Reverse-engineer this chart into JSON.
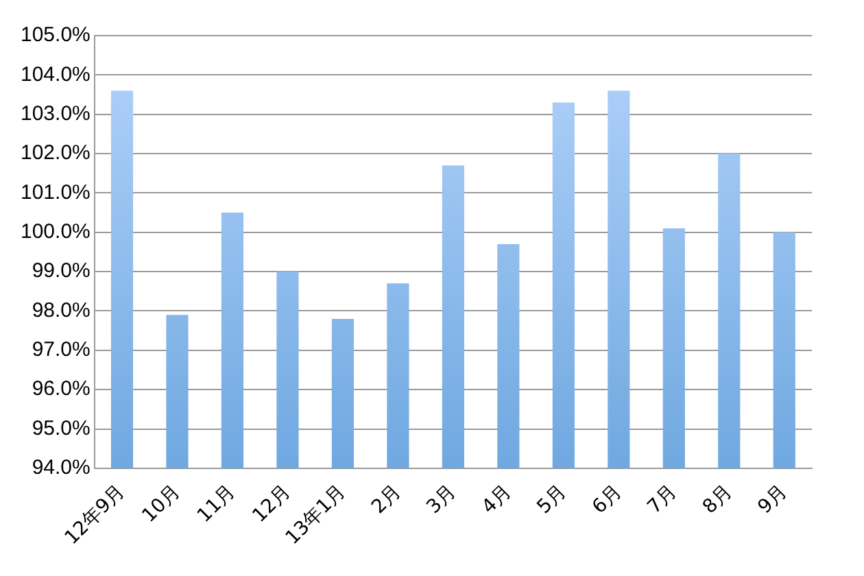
{
  "chart_data": {
    "type": "bar",
    "categories": [
      "12年9月",
      "10月",
      "11月",
      "12月",
      "13年1月",
      "2月",
      "3月",
      "4月",
      "5月",
      "6月",
      "7月",
      "8月",
      "9月"
    ],
    "values": [
      103.6,
      97.9,
      100.5,
      99.0,
      97.8,
      98.7,
      101.7,
      99.7,
      103.3,
      103.6,
      100.1,
      102.0,
      100.0
    ],
    "color": "#6fa8e0",
    "ylim": [
      94,
      105
    ],
    "yticks": [
      {
        "value": 94,
        "label": "94.0%"
      },
      {
        "value": 95,
        "label": "95.0%"
      },
      {
        "value": 96,
        "label": "96.0%"
      },
      {
        "value": 97,
        "label": "97.0%"
      },
      {
        "value": 98,
        "label": "98.0%"
      },
      {
        "value": 99,
        "label": "99.0%"
      },
      {
        "value": 100,
        "label": "100.0%"
      },
      {
        "value": 101,
        "label": "101.0%"
      },
      {
        "value": 102,
        "label": "102.0%"
      },
      {
        "value": 103,
        "label": "103.0%"
      },
      {
        "value": 104,
        "label": "104.0%"
      },
      {
        "value": 105,
        "label": "105.0%"
      }
    ],
    "grid": "y",
    "legend": false
  }
}
